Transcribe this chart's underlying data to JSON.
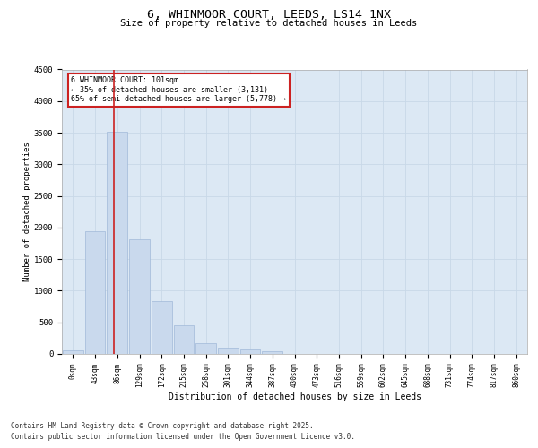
{
  "title_line1": "6, WHINMOOR COURT, LEEDS, LS14 1NX",
  "title_line2": "Size of property relative to detached houses in Leeds",
  "xlabel": "Distribution of detached houses by size in Leeds",
  "ylabel": "Number of detached properties",
  "categories": [
    "0sqm",
    "43sqm",
    "86sqm",
    "129sqm",
    "172sqm",
    "215sqm",
    "258sqm",
    "301sqm",
    "344sqm",
    "387sqm",
    "430sqm",
    "473sqm",
    "516sqm",
    "559sqm",
    "602sqm",
    "645sqm",
    "688sqm",
    "731sqm",
    "774sqm",
    "817sqm",
    "860sqm"
  ],
  "values": [
    50,
    1940,
    3520,
    1820,
    840,
    450,
    175,
    105,
    65,
    45,
    0,
    0,
    0,
    0,
    0,
    0,
    0,
    0,
    0,
    0,
    0
  ],
  "bar_color": "#c9d9ed",
  "bar_edge_color": "#a0b8d8",
  "grid_color": "#c8d8e8",
  "background_color": "#dce8f4",
  "vline_color": "#cc2222",
  "vline_x_index": 1.85,
  "annotation_text": "6 WHINMOOR COURT: 101sqm\n← 35% of detached houses are smaller (3,131)\n65% of semi-detached houses are larger (5,778) →",
  "annotation_box_edgecolor": "#cc2222",
  "footer_line1": "Contains HM Land Registry data © Crown copyright and database right 2025.",
  "footer_line2": "Contains public sector information licensed under the Open Government Licence v3.0.",
  "ylim": [
    0,
    4500
  ],
  "yticks": [
    0,
    500,
    1000,
    1500,
    2000,
    2500,
    3000,
    3500,
    4000,
    4500
  ]
}
